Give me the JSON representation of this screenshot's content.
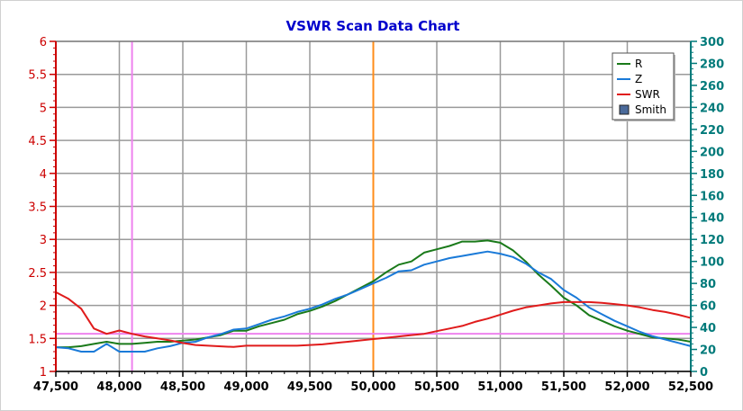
{
  "chart_data": {
    "type": "line",
    "title": "VSWR Scan Data Chart",
    "xlabel": "",
    "ylabel_left": "",
    "ylabel_right": "",
    "xlim": [
      47500,
      52500
    ],
    "ylim_left": [
      1,
      6
    ],
    "ylim_right": [
      0,
      300
    ],
    "grid": true,
    "legend_position": "top-right",
    "x_ticks": [
      47500,
      48000,
      48500,
      49000,
      49500,
      50000,
      50500,
      51000,
      51500,
      52000,
      52500
    ],
    "x_tick_labels": [
      "47,500",
      "48,000",
      "48,500",
      "49,000",
      "49,500",
      "50,000",
      "50,500",
      "51,000",
      "51,500",
      "52,000",
      "52,500"
    ],
    "y_left_ticks": [
      1,
      1.5,
      2,
      2.5,
      3,
      3.5,
      4,
      4.5,
      5,
      5.5,
      6
    ],
    "y_left_tick_labels": [
      "1",
      "1.5",
      "2",
      "2.5",
      "3",
      "3.5",
      "4",
      "4.5",
      "5",
      "5.5",
      "6"
    ],
    "y_right_ticks": [
      0,
      20,
      40,
      60,
      80,
      100,
      120,
      140,
      160,
      180,
      200,
      220,
      240,
      260,
      280,
      300
    ],
    "y_right_tick_labels": [
      "0",
      "20",
      "40",
      "60",
      "80",
      "100",
      "120",
      "140",
      "160",
      "180",
      "200",
      "220",
      "240",
      "260",
      "280",
      "300"
    ],
    "markers": {
      "vertical_lines": [
        {
          "x": 48100,
          "color": "#ee82ee"
        },
        {
          "x": 50000,
          "color": "#ff8c1a"
        }
      ],
      "horizontal_lines": [
        {
          "y": 1.57,
          "axis": "left",
          "color": "#ee82ee"
        }
      ]
    },
    "series": [
      {
        "name": "R",
        "axis": "right",
        "color": "#1a7a1a",
        "x": [
          47500,
          47600,
          47700,
          47800,
          47900,
          48000,
          48100,
          48200,
          48300,
          48400,
          48500,
          48600,
          48700,
          48800,
          48900,
          49000,
          49100,
          49200,
          49300,
          49400,
          49500,
          49600,
          49700,
          49800,
          49900,
          50000,
          50100,
          50200,
          50300,
          50400,
          50500,
          50600,
          50700,
          50800,
          50900,
          51000,
          51100,
          51200,
          51300,
          51400,
          51500,
          51600,
          51700,
          51800,
          51900,
          52000,
          52100,
          52200,
          52300,
          52400,
          52500
        ],
        "values": [
          22,
          22,
          23,
          25,
          27,
          25,
          25,
          26,
          27,
          27,
          28,
          29,
          31,
          33,
          37,
          37,
          41,
          44,
          47,
          52,
          55,
          59,
          64,
          70,
          76,
          82,
          90,
          97,
          100,
          108,
          111,
          114,
          118,
          118,
          119,
          117,
          110,
          100,
          88,
          78,
          67,
          60,
          51,
          46,
          41,
          37,
          34,
          31,
          30,
          29,
          27
        ]
      },
      {
        "name": "Z",
        "axis": "right",
        "color": "#1a7ad8",
        "x": [
          47500,
          47600,
          47700,
          47800,
          47900,
          48000,
          48100,
          48200,
          48300,
          48400,
          48500,
          48600,
          48700,
          48800,
          48900,
          49000,
          49100,
          49200,
          49300,
          49400,
          49500,
          49600,
          49700,
          49800,
          49900,
          50000,
          50100,
          50200,
          50300,
          50400,
          50500,
          50600,
          50700,
          50800,
          50900,
          51000,
          51100,
          51200,
          51300,
          51400,
          51500,
          51600,
          51700,
          51800,
          51900,
          52000,
          52100,
          52200,
          52300,
          52400,
          52500
        ],
        "values": [
          22,
          21,
          18,
          18,
          25,
          18,
          18,
          18,
          21,
          23,
          26,
          27,
          31,
          34,
          38,
          39,
          43,
          47,
          50,
          54,
          57,
          61,
          66,
          70,
          75,
          80,
          85,
          91,
          92,
          97,
          100,
          103,
          105,
          107,
          109,
          107,
          104,
          98,
          90,
          84,
          74,
          67,
          58,
          52,
          46,
          41,
          36,
          32,
          29,
          26,
          23
        ]
      },
      {
        "name": "SWR",
        "axis": "left",
        "color": "#e01b1b",
        "x": [
          47500,
          47600,
          47700,
          47800,
          47900,
          48000,
          48100,
          48200,
          48300,
          48400,
          48500,
          48600,
          48700,
          48800,
          48900,
          49000,
          49100,
          49200,
          49300,
          49400,
          49500,
          49600,
          49700,
          49800,
          49900,
          50000,
          50100,
          50200,
          50300,
          50400,
          50500,
          50600,
          50700,
          50800,
          50900,
          51000,
          51100,
          51200,
          51300,
          51400,
          51500,
          51600,
          51700,
          51800,
          51900,
          52000,
          52100,
          52200,
          52300,
          52400,
          52500
        ],
        "values": [
          2.2,
          2.1,
          1.95,
          1.65,
          1.57,
          1.62,
          1.57,
          1.53,
          1.5,
          1.47,
          1.43,
          1.4,
          1.39,
          1.38,
          1.37,
          1.39,
          1.39,
          1.39,
          1.39,
          1.39,
          1.4,
          1.41,
          1.43,
          1.45,
          1.47,
          1.49,
          1.51,
          1.53,
          1.55,
          1.57,
          1.61,
          1.65,
          1.69,
          1.75,
          1.8,
          1.86,
          1.92,
          1.97,
          2.0,
          2.03,
          2.05,
          2.05,
          2.05,
          2.04,
          2.02,
          2.0,
          1.97,
          1.93,
          1.9,
          1.86,
          1.81
        ]
      },
      {
        "name": "Smith",
        "axis": "none",
        "color": "#4a6a9a",
        "legend_marker": "square",
        "values": []
      }
    ]
  },
  "colors": {
    "title": "#0000cc",
    "left_axis": "#cc0000",
    "right_axis": "#007a7a",
    "x_axis": "#000000",
    "grid": "#9a9a9a",
    "plot_background": "#ffffff"
  }
}
